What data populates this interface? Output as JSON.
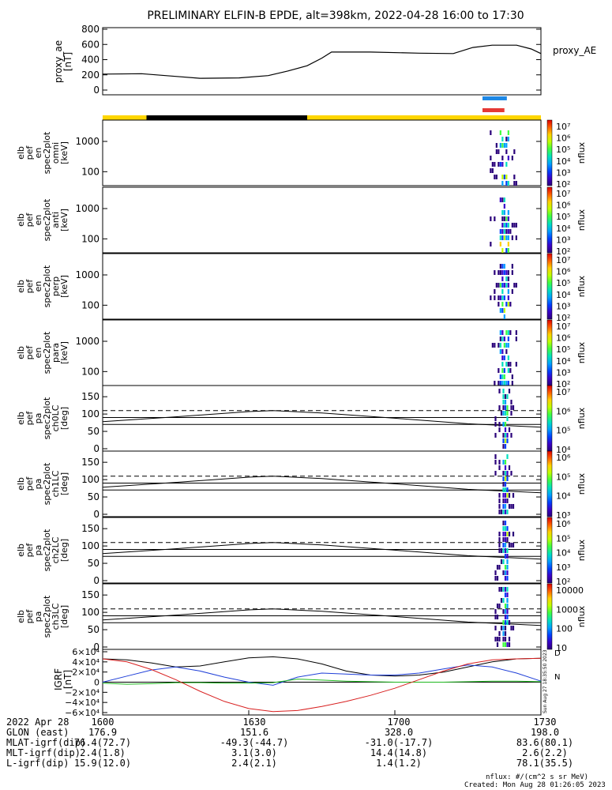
{
  "title": "PRELIMINARY ELFIN-B EPDE, alt=398km, 2022-04-28 16:00 to 17:30",
  "panels": {
    "proxy": {
      "ylabel": [
        "proxy_ae",
        "[nT]"
      ],
      "series_label": "proxy_AE",
      "ticks": [
        "800",
        "600",
        "400",
        "200",
        "0"
      ]
    },
    "spectra": [
      {
        "ylabel": [
          "elb",
          "pef",
          "en",
          "spec2plot",
          "omni",
          "[keV]"
        ],
        "ticks": [
          "1000",
          "100"
        ]
      },
      {
        "ylabel": [
          "elb",
          "pef",
          "en",
          "spec2plot",
          "anti",
          "[keV]"
        ],
        "ticks": [
          "1000",
          "100"
        ]
      },
      {
        "ylabel": [
          "elb",
          "pef",
          "en",
          "spec2plot",
          "perp",
          "[keV]"
        ],
        "ticks": [
          "1000",
          "100"
        ]
      },
      {
        "ylabel": [
          "elb",
          "pef",
          "en",
          "spec2plot",
          "para",
          "[keV]"
        ],
        "ticks": [
          "1000",
          "100"
        ]
      }
    ],
    "pa": [
      {
        "ylabel": [
          "elb",
          "pef",
          "pa",
          "spec2plot",
          "ch0LC",
          "[deg]"
        ],
        "ticks": [
          "150",
          "100",
          "50",
          "0"
        ]
      },
      {
        "ylabel": [
          "elb",
          "pef",
          "pa",
          "spec2plot",
          "ch1LC",
          "[deg]"
        ],
        "ticks": [
          "150",
          "100",
          "50",
          "0"
        ]
      },
      {
        "ylabel": [
          "elb",
          "pef",
          "pa",
          "spec2plot",
          "ch2LC",
          "[deg]"
        ],
        "ticks": [
          "150",
          "100",
          "50",
          "0"
        ]
      },
      {
        "ylabel": [
          "elb",
          "pef",
          "pa",
          "spec2plot",
          "ch3LC",
          "[deg]"
        ],
        "ticks": [
          "150",
          "100",
          "50",
          "0"
        ]
      }
    ],
    "igrf": {
      "ylabel": [
        "IGRF",
        "[nT]"
      ],
      "ticks": [
        "6×10⁴",
        "4×10⁴",
        "2×10⁴",
        "0",
        "−2×10⁴",
        "−4×10⁴",
        "−6×10⁴"
      ],
      "side_labels": [
        "D",
        "N"
      ],
      "stamp": "Sun Aug 27 18:35:50 2023"
    }
  },
  "colorbars": [
    {
      "title": "nflux",
      "labels": [
        "10⁷",
        "10⁶",
        "10⁵",
        "10⁴",
        "10³",
        "10²"
      ]
    },
    {
      "title": "nflux",
      "labels": [
        "10⁷",
        "10⁶",
        "10⁵",
        "10⁴",
        "10³",
        "10²"
      ]
    },
    {
      "title": "nflux",
      "labels": [
        "10⁷",
        "10⁶",
        "10⁵",
        "10⁴",
        "10³",
        "10²"
      ]
    },
    {
      "title": "nflux",
      "labels": [
        "10⁷",
        "10⁶",
        "10⁵",
        "10⁴",
        "10³",
        "10²"
      ]
    },
    {
      "title": "nflux",
      "labels": [
        "10⁷",
        "10⁶",
        "10⁵",
        "10⁴"
      ]
    },
    {
      "title": "nflux",
      "labels": [
        "10⁶",
        "10⁵",
        "10⁴",
        "10³"
      ]
    },
    {
      "title": "nflux",
      "labels": [
        "10⁶",
        "10⁵",
        "10⁴",
        "10³",
        "10²"
      ]
    },
    {
      "title": "nflux",
      "labels": [
        "10000",
        "1000",
        "100",
        "10"
      ]
    }
  ],
  "chart_data": {
    "type": "line",
    "x_label_times": [
      "1600",
      "1630",
      "1700",
      "1730"
    ],
    "x_minutes": [
      0,
      30,
      60,
      90
    ],
    "proxy_ae": {
      "name": "proxy_AE",
      "x_min": [
        0,
        8,
        15,
        20,
        28,
        34,
        38,
        42,
        45,
        47,
        55,
        65,
        72,
        76,
        80,
        85,
        88,
        90
      ],
      "y_nT": [
        210,
        215,
        180,
        155,
        160,
        190,
        250,
        320,
        420,
        500,
        500,
        485,
        480,
        560,
        590,
        590,
        540,
        480
      ]
    },
    "pa_bounds_deg": {
      "dashed": 110,
      "solid_high": 90,
      "solid_low": 70
    },
    "pa_curve": {
      "x_min": [
        0,
        15,
        30,
        35,
        45,
        60,
        75,
        90
      ],
      "deg": [
        78,
        92,
        107,
        110,
        103,
        88,
        72,
        62
      ]
    },
    "igrf": {
      "x_min": [
        0,
        5,
        10,
        15,
        20,
        25,
        30,
        35,
        40,
        45,
        50,
        55,
        60,
        65,
        70,
        75,
        80,
        85,
        90
      ],
      "black_nT": [
        46000,
        44000,
        38000,
        30000,
        32000,
        40000,
        48000,
        50000,
        46000,
        36000,
        22000,
        14000,
        12000,
        14000,
        20000,
        30000,
        40000,
        46000,
        47000
      ],
      "blue_nT": [
        0,
        12000,
        24000,
        30000,
        22000,
        10000,
        0,
        -6000,
        10000,
        18000,
        16000,
        14000,
        14000,
        18000,
        26000,
        34000,
        30000,
        18000,
        2000
      ],
      "green_nT": [
        -2000,
        -4000,
        -3000,
        -1000,
        -1000,
        -2000,
        -2000,
        -1000,
        6000,
        4000,
        2000,
        1000,
        0,
        0,
        0,
        1000,
        2000,
        2000,
        1000
      ],
      "red_nT": [
        46000,
        40000,
        25000,
        5000,
        -18000,
        -38000,
        -52000,
        -58000,
        -56000,
        -48000,
        -38000,
        -26000,
        -12000,
        5000,
        22000,
        36000,
        44000,
        46000,
        47000
      ],
      "ylim": [
        -60000,
        60000
      ]
    }
  },
  "ephemeris": [
    {
      "label": "2022 Apr 28",
      "values": [
        "1600",
        "1630",
        "1700",
        "1730"
      ]
    },
    {
      "label": "GLON (east)",
      "values": [
        "176.9",
        "151.6",
        "328.0",
        "198.0"
      ]
    },
    {
      "label": "MLAT-igrf(dip)",
      "values": [
        "76.4(72.7)",
        "-49.3(-44.7)",
        "-31.0(-17.7)",
        "83.6(80.1)"
      ]
    },
    {
      "label": "MLT-igrf(dip)",
      "values": [
        "2.4(1.8)",
        "3.1(3.0)",
        "14.4(14.8)",
        "2.6(2.2)"
      ]
    },
    {
      "label": "L-igrf(dip)",
      "values": [
        "15.9(12.0)",
        "2.4(2.1)",
        "1.4(1.2)",
        "78.1(35.5)"
      ]
    }
  ],
  "footer": {
    "units": "nflux: #/(cm^2 s sr MeV)",
    "created": "Created: Mon Aug 28 01:26:05 2023"
  }
}
